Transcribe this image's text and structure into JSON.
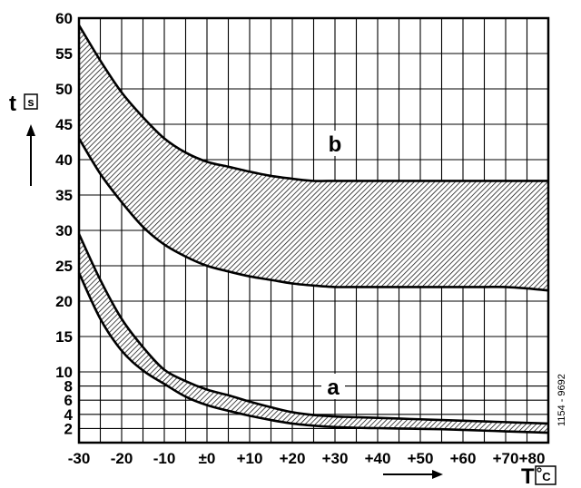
{
  "chart_data": {
    "type": "area",
    "x_axis": {
      "symbol": "T",
      "unit": "C",
      "range": [
        -30,
        80
      ],
      "major_step": 10,
      "tick_values": [
        -30,
        -20,
        -10,
        0,
        10,
        20,
        30,
        40,
        50,
        60,
        70,
        80
      ],
      "tick_labels": [
        "-30",
        "-20",
        "-10",
        "±0",
        "+10",
        "+20",
        "+30",
        "+40",
        "+50",
        "+60",
        "+70",
        "+80"
      ]
    },
    "y_axis": {
      "symbol": "t",
      "unit": "s",
      "range": [
        0,
        60
      ],
      "tick_labels": [
        {
          "value": 60,
          "label": "60"
        },
        {
          "value": 55,
          "label": "55"
        },
        {
          "value": 50,
          "label": "50"
        },
        {
          "value": 45,
          "label": "45"
        },
        {
          "value": 40,
          "label": "40"
        },
        {
          "value": 35,
          "label": "35"
        },
        {
          "value": 30,
          "label": "30"
        },
        {
          "value": 25,
          "label": "25"
        },
        {
          "value": 20,
          "label": "20"
        },
        {
          "value": 15,
          "label": "15"
        },
        {
          "value": 10,
          "label": "10"
        },
        {
          "value": 8,
          "label": "8"
        },
        {
          "value": 6,
          "label": "6"
        },
        {
          "value": 4,
          "label": "4"
        },
        {
          "value": 2,
          "label": "2"
        }
      ],
      "gridlines": [
        2,
        4,
        6,
        8,
        10,
        15,
        20,
        25,
        30,
        35,
        40,
        45,
        50,
        55,
        60
      ]
    },
    "grid": true,
    "series": [
      {
        "name": "b",
        "fill": "hatched",
        "upper": {
          "x": [
            -30,
            -25,
            -20,
            -15,
            -10,
            -5,
            0,
            5,
            10,
            15,
            20,
            25,
            30,
            35,
            40,
            45,
            50,
            55,
            60,
            65,
            70,
            75,
            80
          ],
          "y": [
            59,
            54,
            49.5,
            46,
            43,
            41,
            39.7,
            39,
            38.3,
            37.7,
            37.3,
            37,
            37,
            37,
            37,
            37,
            37,
            37,
            37,
            37,
            37,
            37,
            37
          ]
        },
        "lower": {
          "x": [
            -30,
            -25,
            -20,
            -15,
            -10,
            -5,
            0,
            5,
            10,
            15,
            20,
            25,
            30,
            35,
            40,
            45,
            50,
            55,
            60,
            65,
            70,
            75,
            80
          ],
          "y": [
            43,
            38,
            34,
            30.5,
            28,
            26.3,
            25,
            24.2,
            23.5,
            23,
            22.5,
            22.2,
            22,
            22,
            22,
            22,
            22,
            22,
            22,
            22,
            22,
            21.8,
            21.5
          ]
        }
      },
      {
        "name": "a",
        "fill": "hatched",
        "upper": {
          "x": [
            -30,
            -25,
            -20,
            -15,
            -10,
            -5,
            0,
            5,
            10,
            15,
            20,
            25,
            30,
            35,
            40,
            45,
            50,
            55,
            60,
            65,
            70,
            75,
            80
          ],
          "y": [
            29.5,
            23,
            17.5,
            13.5,
            10.3,
            8.7,
            7.5,
            6.7,
            5.8,
            5,
            4.3,
            3.9,
            3.7,
            3.6,
            3.5,
            3.4,
            3.3,
            3.2,
            3.1,
            3,
            2.9,
            2.8,
            2.7
          ]
        },
        "lower": {
          "x": [
            -30,
            -25,
            -20,
            -15,
            -10,
            -5,
            0,
            5,
            10,
            15,
            20,
            25,
            30,
            35,
            40,
            45,
            50,
            55,
            60,
            65,
            70,
            75,
            80
          ],
          "y": [
            24,
            17.5,
            13,
            10.2,
            8.3,
            6.5,
            5.3,
            4.5,
            3.8,
            3.2,
            2.7,
            2.4,
            2.2,
            2.1,
            2.05,
            2,
            1.95,
            1.9,
            1.8,
            1.7,
            1.6,
            1.5,
            1.4
          ]
        }
      }
    ],
    "annotations": {
      "reference_code": "1154 - 9692"
    }
  }
}
